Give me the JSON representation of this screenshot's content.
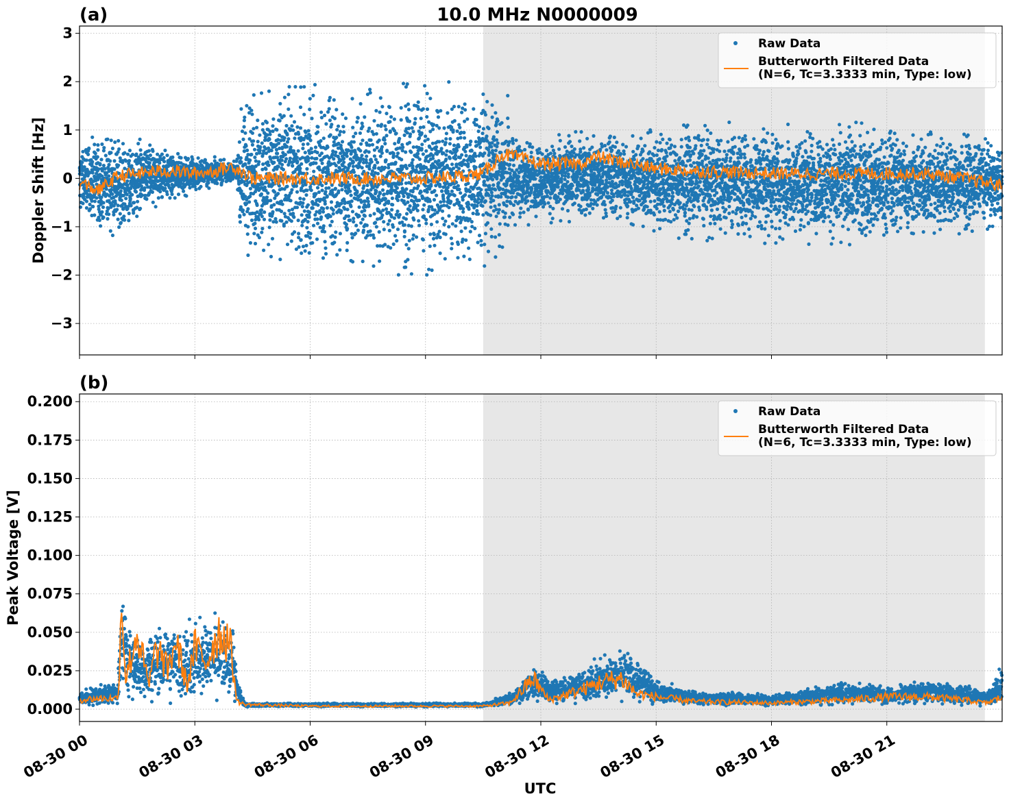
{
  "chart_data": [
    {
      "type": "scatter",
      "panel_label": "(a)",
      "title": "10.0 MHz N0000009",
      "xlabel": "",
      "ylabel": "Doppler Shift [Hz]",
      "ylim": [
        -3.65,
        3.15
      ],
      "yticks": [
        3,
        2,
        1,
        0,
        -1,
        -2,
        -3
      ],
      "ytick_labels": [
        "3",
        "2",
        "1",
        "0",
        "−1",
        "−2",
        "−3"
      ],
      "xlim_hours": [
        0,
        24
      ],
      "xticks_hours": [
        0,
        3,
        6,
        9,
        12,
        15,
        18,
        21
      ],
      "shaded_span_hours": [
        10.5,
        23.55
      ],
      "grid": true,
      "legend_position": "upper right",
      "series": [
        {
          "name": "Raw Data",
          "kind": "scatter",
          "color": "#1f77b4",
          "envelope_hours": [
            0,
            1,
            2,
            3,
            4.1,
            4.2,
            6,
            9,
            10.5,
            11.2,
            11.5,
            13,
            15,
            18,
            21,
            24
          ],
          "envelope_low": [
            -1.0,
            -1.3,
            -0.6,
            -0.3,
            -0.1,
            -1.6,
            -2.0,
            -2.0,
            -1.9,
            -1.5,
            -1.0,
            -0.9,
            -1.2,
            -1.4,
            -1.4,
            -1.0
          ],
          "envelope_high": [
            0.9,
            1.0,
            0.7,
            0.5,
            0.4,
            1.8,
            2.0,
            2.0,
            2.0,
            1.8,
            0.9,
            1.0,
            1.1,
            1.2,
            1.2,
            0.8
          ]
        },
        {
          "name": "Butterworth Filtered Data\n(N=6, Tc=3.3333 min, Type: low)",
          "kind": "line",
          "color": "#ff7f0e",
          "x_hours": [
            0,
            0.5,
            1.0,
            1.5,
            2.0,
            2.5,
            3.0,
            3.5,
            4.0,
            4.5,
            5,
            6,
            7,
            8,
            9,
            10,
            10.5,
            11,
            11.3,
            12,
            13,
            13.5,
            14,
            15,
            16,
            18,
            20,
            22,
            23,
            24
          ],
          "y": [
            -0.1,
            -0.25,
            0.05,
            0.1,
            0.15,
            0.15,
            0.1,
            0.15,
            0.25,
            0.0,
            0.0,
            0.0,
            0.0,
            0.0,
            0.0,
            0.05,
            0.1,
            0.5,
            0.45,
            0.3,
            0.3,
            0.45,
            0.35,
            0.2,
            0.15,
            0.1,
            0.1,
            0.1,
            0.0,
            -0.15
          ]
        }
      ]
    },
    {
      "type": "scatter",
      "panel_label": "(b)",
      "title": "",
      "xlabel": "UTC",
      "ylabel": "Peak Voltage [V]",
      "ylim": [
        -0.008,
        0.205
      ],
      "yticks": [
        0.2,
        0.175,
        0.15,
        0.125,
        0.1,
        0.075,
        0.05,
        0.025,
        0.0
      ],
      "ytick_labels": [
        "0.200",
        "0.175",
        "0.150",
        "0.125",
        "0.100",
        "0.075",
        "0.050",
        "0.025",
        "0.000"
      ],
      "xlim_hours": [
        0,
        24
      ],
      "xticks_hours": [
        0,
        3,
        6,
        9,
        12,
        15,
        18,
        21
      ],
      "xtick_labels": [
        "08-30 00",
        "08-30 03",
        "08-30 06",
        "08-30 09",
        "08-30 12",
        "08-30 15",
        "08-30 18",
        "08-30 21"
      ],
      "shaded_span_hours": [
        10.5,
        23.55
      ],
      "grid": true,
      "legend_position": "upper right",
      "series": [
        {
          "name": "Raw Data",
          "kind": "scatter",
          "color": "#1f77b4",
          "envelope_hours": [
            0,
            1.0,
            1.1,
            1.2,
            1.5,
            2.0,
            2.5,
            3.0,
            3.5,
            4.0,
            4.1,
            4.3,
            6,
            9,
            10.5,
            11.3,
            11.8,
            12.5,
            13.5,
            14.2,
            15,
            16,
            18,
            20,
            21,
            22,
            23,
            23.6,
            24
          ],
          "envelope_low": [
            0.002,
            0.002,
            0.002,
            0.004,
            0.003,
            0.003,
            0.003,
            0.003,
            0.004,
            0.004,
            0.002,
            0.0015,
            0.0015,
            0.0015,
            0.0015,
            0.003,
            0.004,
            0.003,
            0.004,
            0.004,
            0.003,
            0.002,
            0.002,
            0.003,
            0.003,
            0.003,
            0.002,
            0.002,
            0.003
          ],
          "envelope_high": [
            0.012,
            0.02,
            0.09,
            0.07,
            0.05,
            0.055,
            0.06,
            0.06,
            0.065,
            0.055,
            0.02,
            0.004,
            0.004,
            0.004,
            0.004,
            0.012,
            0.03,
            0.02,
            0.035,
            0.04,
            0.02,
            0.012,
            0.01,
            0.018,
            0.015,
            0.02,
            0.017,
            0.012,
            0.03
          ]
        },
        {
          "name": "Butterworth Filtered Data\n(N=6, Tc=3.3333 min, Type: low)",
          "kind": "line",
          "color": "#ff7f0e",
          "x_hours": [
            0,
            0.5,
            1.0,
            1.1,
            1.2,
            1.5,
            1.8,
            2.0,
            2.3,
            2.5,
            2.8,
            3.0,
            3.3,
            3.6,
            3.9,
            4.1,
            4.3,
            6,
            9,
            10.5,
            11.2,
            11.8,
            12.2,
            13,
            13.6,
            14.1,
            14.5,
            15,
            16,
            18,
            20,
            21,
            22,
            23,
            23.6,
            24
          ],
          "y": [
            0.006,
            0.007,
            0.007,
            0.073,
            0.02,
            0.05,
            0.015,
            0.04,
            0.025,
            0.045,
            0.015,
            0.04,
            0.03,
            0.05,
            0.045,
            0.005,
            0.003,
            0.002,
            0.002,
            0.002,
            0.004,
            0.02,
            0.006,
            0.012,
            0.018,
            0.02,
            0.01,
            0.008,
            0.005,
            0.004,
            0.006,
            0.008,
            0.008,
            0.006,
            0.004,
            0.008
          ]
        }
      ]
    }
  ]
}
